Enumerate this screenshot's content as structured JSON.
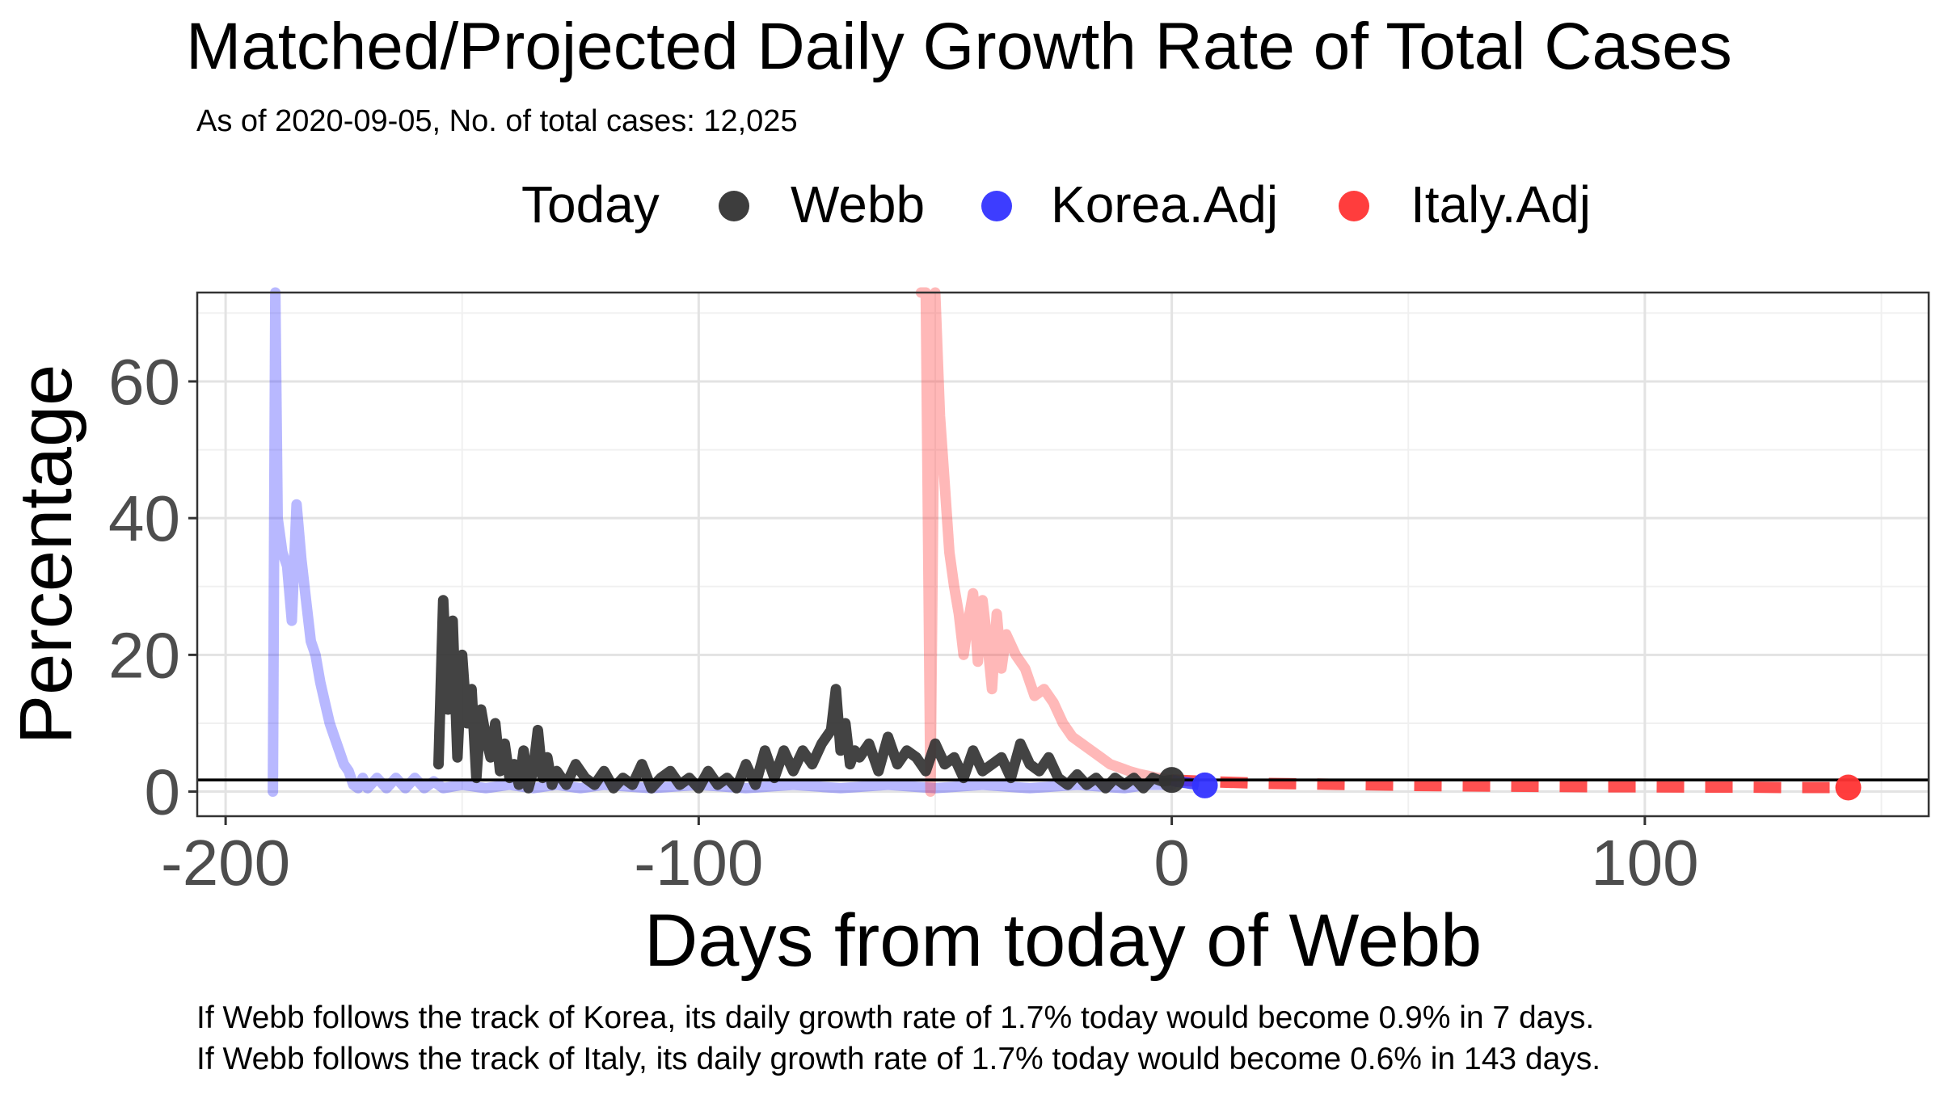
{
  "chart_data": {
    "type": "line",
    "title": "Matched/Projected Daily Growth Rate of Total Cases",
    "subtitle": "As of 2020-09-05, No. of total cases: 12,025",
    "xlabel": "Days from today of Webb",
    "ylabel": "Percentage",
    "xlim": [
      -206,
      160
    ],
    "ylim": [
      -3.6,
      73
    ],
    "x_ticks": [
      -200,
      -100,
      0,
      100
    ],
    "x_tick_labels": [
      "-200",
      "-100",
      "0",
      "100"
    ],
    "y_ticks": [
      0,
      20,
      40,
      60
    ],
    "y_tick_labels": [
      "0",
      "20",
      "40",
      "60"
    ],
    "grid": true,
    "legend": {
      "position": "top",
      "title": "Today",
      "entries": [
        {
          "label": "Webb",
          "color": "#333333"
        },
        {
          "label": "Korea.Adj",
          "color": "#3333ff"
        },
        {
          "label": "Italy.Adj",
          "color": "#ff3333"
        }
      ]
    },
    "today_rate_hline": 1.7,
    "series": [
      {
        "name": "Korea.Adj",
        "color": "#3333ff",
        "matched": {
          "x": [
            -190,
            -189.5,
            -189,
            -188,
            -187,
            -186,
            -185,
            -184,
            -183,
            -182,
            -181,
            -180,
            -179,
            -178,
            -177,
            -176,
            -175,
            -174,
            -173,
            -172,
            -171,
            -170,
            -168,
            -166,
            -164,
            -162,
            -160,
            -158,
            -156,
            -154,
            -150,
            -145,
            -140,
            -135,
            -130,
            -125,
            -120,
            -110,
            -100,
            -90,
            -80,
            -70,
            -60,
            -50,
            -40,
            -30,
            -20,
            -10,
            -5,
            0
          ],
          "y": [
            0,
            74,
            40,
            35,
            33,
            25,
            42,
            34,
            28,
            22,
            20,
            16,
            13,
            10,
            8,
            6,
            4,
            3,
            1,
            0.5,
            2,
            0.5,
            2,
            0.5,
            2,
            0.5,
            2,
            0.5,
            1.5,
            0.5,
            1,
            0.5,
            1,
            0.5,
            1,
            0.5,
            1,
            0.5,
            1,
            0.5,
            1,
            0.5,
            1,
            0.5,
            1,
            0.5,
            1,
            0.5,
            1,
            1
          ]
        },
        "projected": {
          "x": [
            0,
            1,
            2,
            3,
            4,
            5,
            6,
            7
          ],
          "y": [
            1.7,
            1.5,
            1.4,
            1.3,
            1.2,
            1.1,
            1.0,
            0.9
          ]
        },
        "endpoint": {
          "x": 7,
          "y": 0.9
        }
      },
      {
        "name": "Italy.Adj",
        "color": "#ff3333",
        "matched": {
          "x": [
            -53,
            -52,
            -51,
            -50,
            -49,
            -48,
            -47,
            -46,
            -45,
            -44,
            -43,
            -42,
            -41,
            -40,
            -39,
            -38,
            -37,
            -36,
            -35,
            -33,
            -31,
            -29,
            -27,
            -25,
            -23,
            -21,
            -19,
            -17,
            -15,
            -13,
            -11,
            -9,
            -7,
            -5,
            -3,
            -1,
            0
          ],
          "y": [
            74,
            74,
            0,
            74,
            55,
            45,
            35,
            30,
            26,
            20,
            25,
            29,
            19,
            28,
            22,
            15,
            26,
            18,
            23,
            20,
            18,
            14,
            15,
            13,
            10,
            8,
            7,
            6,
            5,
            4,
            3.5,
            3,
            2.6,
            2.3,
            2,
            1.8,
            1.7
          ]
        },
        "projected": {
          "x": [
            0,
            10,
            20,
            30,
            40,
            50,
            60,
            70,
            80,
            90,
            100,
            110,
            120,
            130,
            143
          ],
          "y": [
            1.7,
            1.4,
            1.2,
            1.1,
            1.0,
            0.9,
            0.85,
            0.8,
            0.75,
            0.7,
            0.7,
            0.65,
            0.65,
            0.6,
            0.6
          ]
        },
        "endpoint": {
          "x": 143,
          "y": 0.6
        }
      },
      {
        "name": "Webb",
        "color": "#333333",
        "x": [
          -155,
          -154,
          -153,
          -152,
          -151,
          -150,
          -149,
          -148,
          -147,
          -146,
          -145,
          -144,
          -143,
          -142,
          -141,
          -140,
          -139,
          -138,
          -137,
          -136,
          -135,
          -134,
          -133,
          -132,
          -131,
          -130,
          -128,
          -126,
          -124,
          -122,
          -120,
          -118,
          -116,
          -114,
          -112,
          -110,
          -108,
          -106,
          -104,
          -102,
          -100,
          -98,
          -96,
          -94,
          -92,
          -90,
          -88,
          -86,
          -84,
          -82,
          -80,
          -78,
          -76,
          -74,
          -72,
          -71,
          -70,
          -69,
          -68,
          -67,
          -66,
          -64,
          -62,
          -60,
          -58,
          -56,
          -54,
          -52,
          -50,
          -48,
          -46,
          -44,
          -42,
          -40,
          -38,
          -36,
          -34,
          -32,
          -30,
          -28,
          -26,
          -24,
          -22,
          -20,
          -18,
          -16,
          -14,
          -12,
          -10,
          -8,
          -6,
          -4,
          -2,
          0
        ],
        "y": [
          4,
          28,
          12,
          25,
          5,
          20,
          10,
          15,
          2,
          12,
          8,
          5,
          10,
          3,
          7,
          2,
          4,
          1,
          6,
          0.5,
          3,
          9,
          2,
          5,
          1,
          3,
          1,
          4,
          2,
          1,
          3,
          0.5,
          2,
          1,
          4,
          0.5,
          2,
          3,
          1,
          2,
          0.5,
          3,
          1,
          2,
          0.5,
          4,
          1,
          6,
          2,
          6,
          3,
          6,
          4,
          7,
          9,
          15,
          6,
          10,
          4,
          6,
          5,
          7,
          3,
          8,
          4,
          6,
          5,
          3,
          7,
          4,
          5,
          2,
          6,
          3,
          4,
          5,
          2,
          7,
          4,
          3,
          5,
          2,
          1,
          2.5,
          1,
          2,
          0.5,
          2,
          1,
          2,
          0.5,
          2,
          1.5,
          1.7
        ]
      }
    ],
    "today_points": [
      {
        "name": "Webb",
        "x": 0,
        "y": 1.7
      },
      {
        "name": "Korea.Adj",
        "x": 7,
        "y": 0.9
      },
      {
        "name": "Italy.Adj",
        "x": 143,
        "y": 0.6
      }
    ]
  },
  "captions": [
    "If Webb follows the track of Korea, its daily growth rate of 1.7% today would become 0.9% in 7 days.",
    "If Webb follows the track of Italy, its daily growth rate of 1.7% today would become 0.6% in 143 days."
  ]
}
